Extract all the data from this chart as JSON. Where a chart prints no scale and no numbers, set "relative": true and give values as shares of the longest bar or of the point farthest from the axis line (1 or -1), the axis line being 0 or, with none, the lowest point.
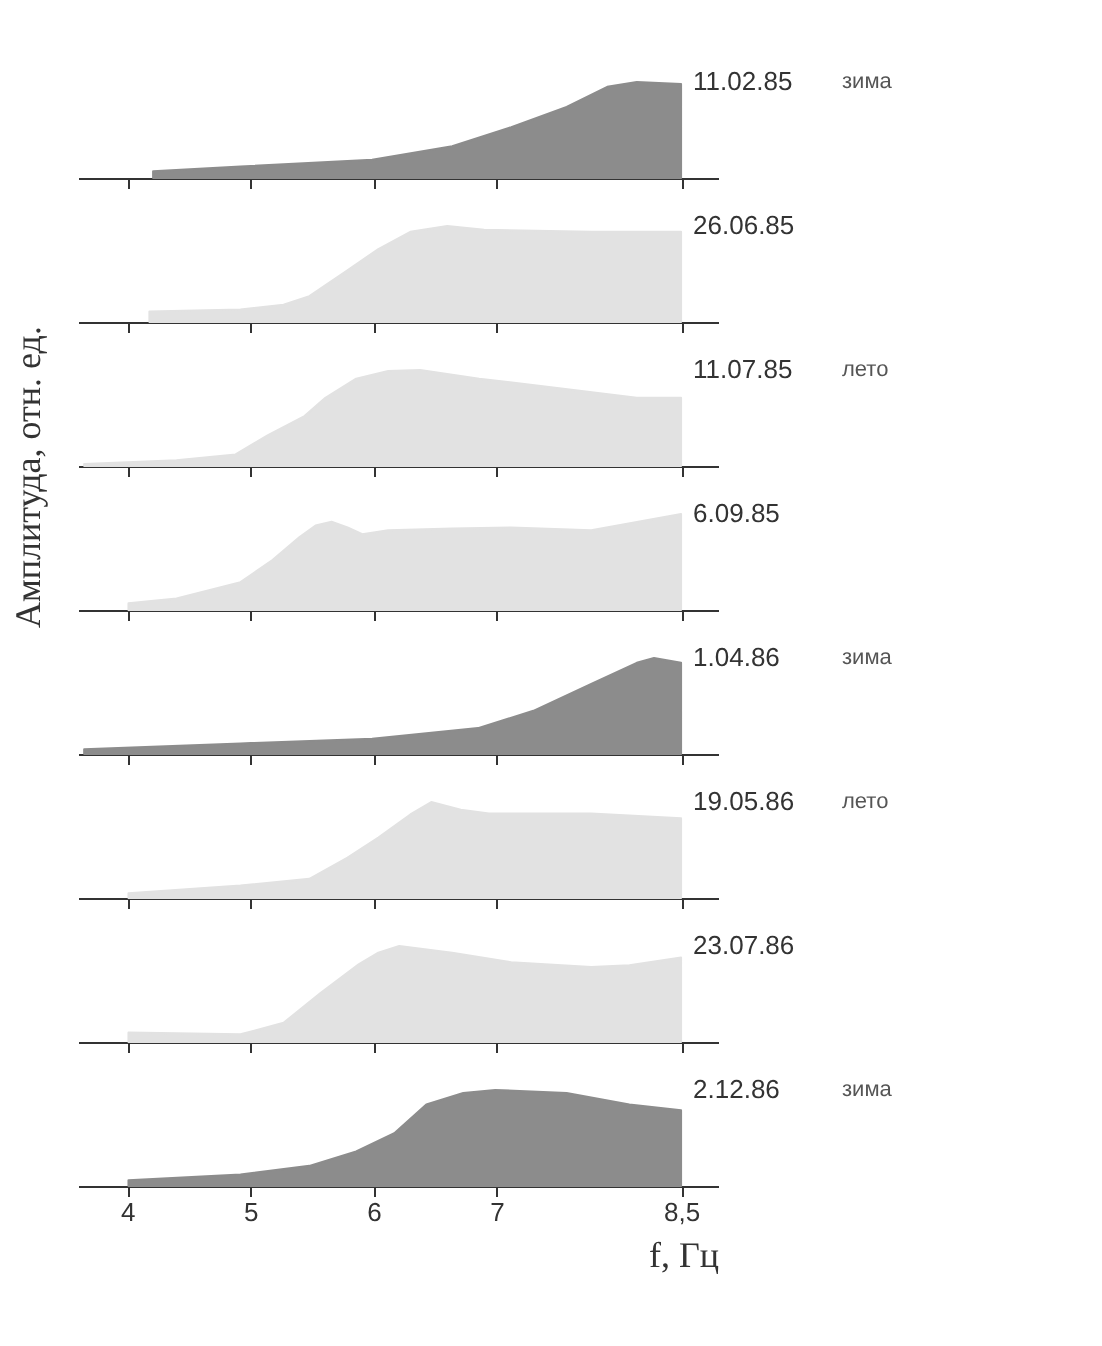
{
  "chart_data": [
    {
      "type": "area",
      "relative": true,
      "xlim": [
        3.6,
        8.8
      ],
      "xticks": [
        4,
        5,
        6,
        7,
        8.5
      ],
      "tick_labels": false,
      "x": [
        4.21,
        4.92,
        5.99,
        6.64,
        7.12,
        7.57,
        7.9,
        8.14,
        8.5
      ],
      "series": [
        {
          "name": "11.02.85",
          "color": "#8c8c8c",
          "values": [
            0.07,
            0.12,
            0.19,
            0.33,
            0.53,
            0.74,
            0.95,
            1,
            0.98
          ]
        }
      ],
      "annotations": [
        "зима"
      ]
    },
    {
      "type": "area",
      "relative": true,
      "xlim": [
        3.6,
        8.8
      ],
      "xticks": [
        4,
        5,
        6,
        7,
        8.5
      ],
      "tick_labels": false,
      "x": [
        4.18,
        4.92,
        5.27,
        5.48,
        5.78,
        6.04,
        6.3,
        6.6,
        6.9,
        7.77,
        8.5
      ],
      "series": [
        {
          "name": "26.06.85",
          "color": "#e2e2e2",
          "values": [
            0.11,
            0.13,
            0.18,
            0.27,
            0.53,
            0.76,
            0.94,
            1,
            0.96,
            0.94,
            0.94
          ]
        }
      ]
    },
    {
      "type": "area",
      "relative": true,
      "xlim": [
        3.6,
        8.8
      ],
      "xticks": [
        4,
        5,
        6,
        7,
        8.5
      ],
      "tick_labels": false,
      "x": [
        3.65,
        4.4,
        4.88,
        5.14,
        5.44,
        5.61,
        5.86,
        6.12,
        6.38,
        6.86,
        7.51,
        8.14,
        8.5
      ],
      "series": [
        {
          "name": "11.07.85",
          "color": "#e2e2e2",
          "values": [
            0.02,
            0.06,
            0.12,
            0.32,
            0.52,
            0.71,
            0.91,
            0.99,
            1,
            0.91,
            0.81,
            0.71,
            0.71
          ]
        }
      ],
      "annotations": [
        "лето"
      ]
    },
    {
      "type": "area",
      "relative": true,
      "xlim": [
        3.6,
        8.8
      ],
      "xticks": [
        4,
        5,
        6,
        7,
        8.5
      ],
      "tick_labels": false,
      "x": [
        4.01,
        4.4,
        4.92,
        5.18,
        5.4,
        5.53,
        5.66,
        5.79,
        5.91,
        6.12,
        6.64,
        7.12,
        7.77,
        8.5
      ],
      "ylabel": "Амплитуда, отн. ед.",
      "series": [
        {
          "name": "6.09.85",
          "color": "#e2e2e2",
          "values": [
            0.07,
            0.12,
            0.29,
            0.52,
            0.76,
            0.88,
            0.92,
            0.86,
            0.79,
            0.83,
            0.85,
            0.86,
            0.83,
            1
          ]
        }
      ]
    },
    {
      "type": "area",
      "relative": true,
      "xlim": [
        3.6,
        8.8
      ],
      "xticks": [
        4,
        5,
        6,
        7,
        8.5
      ],
      "tick_labels": false,
      "x": [
        3.65,
        4.92,
        5.99,
        6.85,
        7.3,
        7.77,
        8.14,
        8.28,
        8.5
      ],
      "series": [
        {
          "name": "1.04.86",
          "color": "#8c8c8c",
          "values": [
            0.05,
            0.11,
            0.16,
            0.27,
            0.45,
            0.73,
            0.95,
            1,
            0.95
          ]
        }
      ],
      "annotations": [
        "зима"
      ]
    },
    {
      "type": "area",
      "relative": true,
      "xlim": [
        3.6,
        8.8
      ],
      "xticks": [
        4,
        5,
        6,
        7,
        8.5
      ],
      "tick_labels": false,
      "x": [
        4.01,
        4.92,
        5.48,
        5.79,
        6.04,
        6.3,
        6.47,
        6.71,
        6.94,
        7.77,
        8.5
      ],
      "series": [
        {
          "name": "19.05.86",
          "color": "#e2e2e2",
          "values": [
            0.05,
            0.13,
            0.2,
            0.42,
            0.63,
            0.87,
            1,
            0.92,
            0.88,
            0.88,
            0.83
          ]
        }
      ],
      "annotations": [
        "лето"
      ]
    },
    {
      "type": "area",
      "relative": true,
      "xlim": [
        3.6,
        8.8
      ],
      "xticks": [
        4,
        5,
        6,
        7,
        8.5
      ],
      "tick_labels": false,
      "x": [
        4.01,
        4.92,
        5.27,
        5.57,
        5.88,
        6.04,
        6.21,
        6.64,
        7.12,
        7.77,
        8.08,
        8.5
      ],
      "series": [
        {
          "name": "23.07.86",
          "color": "#e2e2e2",
          "values": [
            0.1,
            0.08,
            0.2,
            0.51,
            0.81,
            0.93,
            1,
            0.93,
            0.83,
            0.78,
            0.8,
            0.88
          ]
        }
      ]
    },
    {
      "type": "area",
      "relative": true,
      "xlabel": "f, Гц",
      "xlim": [
        3.6,
        8.8
      ],
      "xticks": [
        4,
        5,
        6,
        7,
        {
          "value": 8.5,
          "label": "8,5"
        }
      ],
      "tick_labels": "x",
      "x": [
        4.01,
        4.92,
        5.48,
        5.86,
        6.17,
        6.43,
        6.73,
        6.99,
        7.57,
        8.08,
        8.5
      ],
      "series": [
        {
          "name": "2.12.86",
          "color": "#8c8c8c",
          "values": [
            0.06,
            0.12,
            0.21,
            0.36,
            0.55,
            0.85,
            0.97,
            1,
            0.97,
            0.85,
            0.79
          ]
        }
      ],
      "annotations": [
        "зима"
      ]
    }
  ]
}
